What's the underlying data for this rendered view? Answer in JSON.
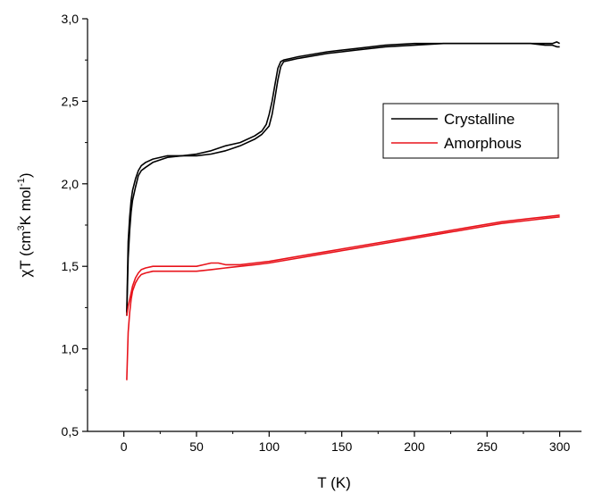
{
  "chart_data": {
    "type": "line",
    "xlabel": "T (K)",
    "ylabel": {
      "pre": "χT (cm",
      "sup1": "3",
      "mid": "K mol",
      "sup2": "-1",
      "post": ")"
    },
    "xlim": [
      -25,
      315
    ],
    "ylim": [
      0.5,
      3.0
    ],
    "xticks": [
      0,
      50,
      100,
      150,
      200,
      250,
      300
    ],
    "xtick_labels": [
      "0",
      "50",
      "100",
      "150",
      "200",
      "250",
      "300"
    ],
    "yticks": [
      0.5,
      1.0,
      1.5,
      2.0,
      2.5,
      3.0
    ],
    "ytick_labels": [
      "0,5",
      "1,0",
      "1,5",
      "2,0",
      "2,5",
      "3,0"
    ],
    "grid": false,
    "legend_position": "top-right",
    "series": [
      {
        "name": "Crystalline",
        "color": "#000000",
        "branches": [
          {
            "x": [
              2,
              3,
              4,
              5,
              6,
              8,
              10,
              12,
              15,
              20,
              30,
              40,
              50,
              60,
              70,
              80,
              90,
              95,
              98,
              100,
              102,
              104,
              106,
              108,
              110,
              115,
              120,
              140,
              160,
              180,
              200,
              220,
              240,
              260,
              280,
              290,
              295,
              298,
              300
            ],
            "y": [
              1.2,
              1.55,
              1.72,
              1.83,
              1.9,
              1.98,
              2.05,
              2.08,
              2.1,
              2.13,
              2.16,
              2.17,
              2.18,
              2.2,
              2.23,
              2.25,
              2.29,
              2.32,
              2.36,
              2.42,
              2.5,
              2.6,
              2.7,
              2.74,
              2.75,
              2.76,
              2.77,
              2.8,
              2.82,
              2.84,
              2.85,
              2.85,
              2.85,
              2.85,
              2.85,
              2.85,
              2.85,
              2.86,
              2.85
            ]
          },
          {
            "x": [
              2,
              3,
              4,
              5,
              6,
              8,
              10,
              12,
              15,
              20,
              30,
              40,
              50,
              60,
              70,
              80,
              90,
              95,
              100,
              102,
              104,
              106,
              108,
              110,
              115,
              120,
              140,
              160,
              180,
              200,
              220,
              240,
              260,
              280,
              290,
              295,
              298,
              300
            ],
            "y": [
              1.22,
              1.65,
              1.8,
              1.9,
              1.96,
              2.03,
              2.08,
              2.11,
              2.13,
              2.15,
              2.17,
              2.17,
              2.17,
              2.18,
              2.2,
              2.23,
              2.27,
              2.3,
              2.35,
              2.42,
              2.52,
              2.63,
              2.71,
              2.74,
              2.75,
              2.76,
              2.79,
              2.81,
              2.83,
              2.84,
              2.85,
              2.85,
              2.85,
              2.85,
              2.84,
              2.84,
              2.83,
              2.83
            ]
          }
        ]
      },
      {
        "name": "Amorphous",
        "color": "#e8141c",
        "branches": [
          {
            "x": [
              2,
              3,
              4,
              5,
              6,
              8,
              10,
              12,
              15,
              20,
              30,
              40,
              50,
              60,
              70,
              80,
              90,
              100,
              120,
              140,
              160,
              180,
              200,
              220,
              240,
              260,
              280,
              290,
              300
            ],
            "y": [
              0.81,
              1.1,
              1.22,
              1.3,
              1.35,
              1.4,
              1.43,
              1.45,
              1.46,
              1.47,
              1.47,
              1.47,
              1.47,
              1.48,
              1.49,
              1.5,
              1.51,
              1.52,
              1.55,
              1.58,
              1.61,
              1.64,
              1.67,
              1.7,
              1.73,
              1.76,
              1.78,
              1.79,
              1.8
            ]
          },
          {
            "x": [
              2,
              3,
              4,
              5,
              6,
              8,
              10,
              12,
              15,
              20,
              25,
              30,
              40,
              50,
              55,
              60,
              65,
              70,
              80,
              90,
              100,
              120,
              140,
              160,
              180,
              200,
              220,
              240,
              260,
              280,
              290,
              300
            ],
            "y": [
              1.2,
              1.26,
              1.3,
              1.34,
              1.38,
              1.43,
              1.46,
              1.48,
              1.49,
              1.5,
              1.5,
              1.5,
              1.5,
              1.5,
              1.51,
              1.52,
              1.52,
              1.51,
              1.51,
              1.52,
              1.53,
              1.56,
              1.59,
              1.62,
              1.65,
              1.68,
              1.71,
              1.74,
              1.77,
              1.79,
              1.8,
              1.81
            ]
          }
        ]
      }
    ]
  }
}
